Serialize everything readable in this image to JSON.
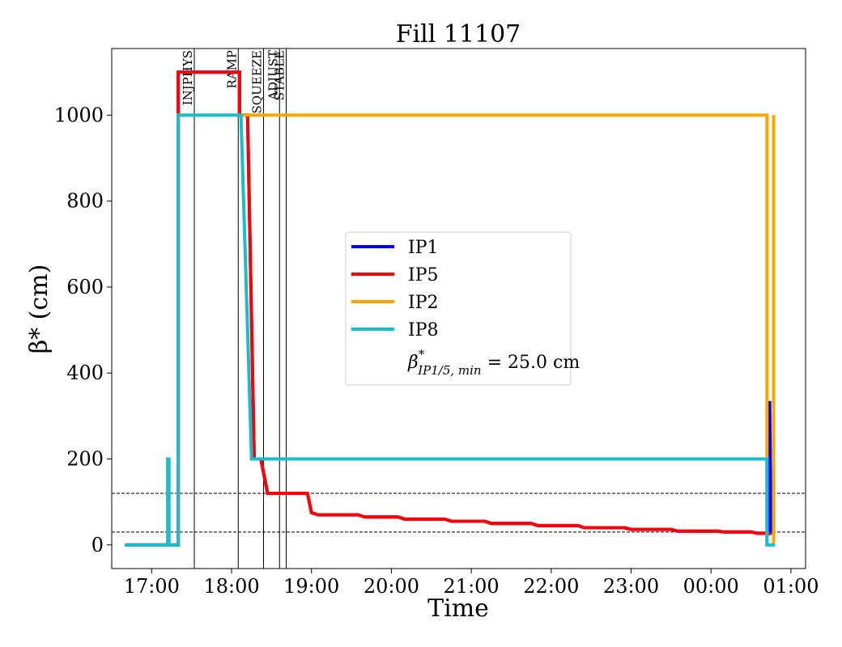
{
  "chart_data": {
    "type": "line",
    "title": "Fill 11107",
    "xlabel": "Time",
    "ylabel": "β* (cm)",
    "xlim": [
      "16:30",
      "01:11"
    ],
    "ylim": [
      -55,
      1155
    ],
    "x_ticks": [
      "17:00",
      "18:00",
      "19:00",
      "20:00",
      "21:00",
      "22:00",
      "23:00",
      "00:00",
      "01:00"
    ],
    "y_ticks": [
      0,
      200,
      400,
      600,
      800,
      1000
    ],
    "grid": false,
    "legend_position": "center",
    "series": [
      {
        "name": "IP1",
        "color": "#0000ff",
        "points": [
          [
            "16:40",
            0
          ],
          [
            "17:20",
            0
          ],
          [
            "17:20",
            1100
          ],
          [
            "18:06",
            1100
          ],
          [
            "18:06",
            1000
          ],
          [
            "18:12",
            1000
          ],
          [
            "18:17",
            200
          ],
          [
            "18:22",
            200
          ],
          [
            "18:27",
            120
          ],
          [
            "18:57",
            120
          ],
          [
            "19:00",
            75
          ],
          [
            "19:05",
            70
          ],
          [
            "19:35",
            70
          ],
          [
            "19:40",
            65
          ],
          [
            "20:05",
            65
          ],
          [
            "20:10",
            60
          ],
          [
            "20:40",
            60
          ],
          [
            "20:45",
            55
          ],
          [
            "21:10",
            55
          ],
          [
            "21:15",
            50
          ],
          [
            "21:45",
            50
          ],
          [
            "21:50",
            45
          ],
          [
            "22:20",
            45
          ],
          [
            "22:25",
            40
          ],
          [
            "22:55",
            40
          ],
          [
            "23:00",
            36
          ],
          [
            "23:30",
            36
          ],
          [
            "23:35",
            32
          ],
          [
            "24:05",
            32
          ],
          [
            "24:10",
            30
          ],
          [
            "24:30",
            30
          ],
          [
            "24:35",
            27
          ],
          [
            "24:44",
            27
          ],
          [
            "24:44",
            335
          ],
          [
            "24:45",
            25
          ]
        ]
      },
      {
        "name": "IP5",
        "color": "#ff0000",
        "points": [
          [
            "16:40",
            0
          ],
          [
            "17:20",
            0
          ],
          [
            "17:20",
            1100
          ],
          [
            "18:06",
            1100
          ],
          [
            "18:06",
            1000
          ],
          [
            "18:12",
            1000
          ],
          [
            "18:17",
            200
          ],
          [
            "18:22",
            200
          ],
          [
            "18:27",
            120
          ],
          [
            "18:57",
            120
          ],
          [
            "19:00",
            75
          ],
          [
            "19:05",
            70
          ],
          [
            "19:35",
            70
          ],
          [
            "19:40",
            65
          ],
          [
            "20:05",
            65
          ],
          [
            "20:10",
            60
          ],
          [
            "20:40",
            60
          ],
          [
            "20:45",
            55
          ],
          [
            "21:10",
            55
          ],
          [
            "21:15",
            50
          ],
          [
            "21:45",
            50
          ],
          [
            "21:50",
            45
          ],
          [
            "22:20",
            45
          ],
          [
            "22:25",
            40
          ],
          [
            "22:55",
            40
          ],
          [
            "23:00",
            36
          ],
          [
            "23:30",
            36
          ],
          [
            "23:35",
            32
          ],
          [
            "24:05",
            32
          ],
          [
            "24:10",
            30
          ],
          [
            "24:30",
            30
          ],
          [
            "24:35",
            27
          ],
          [
            "24:43",
            27
          ],
          [
            "24:45",
            25
          ]
        ]
      },
      {
        "name": "IP2",
        "color": "#ffa500",
        "points": [
          [
            "16:40",
            0
          ],
          [
            "17:20",
            0
          ],
          [
            "17:20",
            1000
          ],
          [
            "24:42",
            1000
          ],
          [
            "24:42",
            0
          ],
          [
            "24:47",
            0
          ],
          [
            "24:47",
            1000
          ],
          [
            "24:47",
            0
          ]
        ]
      },
      {
        "name": "IP8",
        "color": "#17becf",
        "points": [
          [
            "16:40",
            0
          ],
          [
            "17:12",
            0
          ],
          [
            "17:12",
            200
          ],
          [
            "17:13",
            200
          ],
          [
            "17:13",
            0
          ],
          [
            "17:20",
            0
          ],
          [
            "17:20",
            1000
          ],
          [
            "18:07",
            1000
          ],
          [
            "18:15",
            200
          ],
          [
            "24:42",
            200
          ],
          [
            "24:42",
            0
          ],
          [
            "24:48",
            0
          ]
        ]
      }
    ],
    "phase_markers": [
      {
        "label": "INJPHYS",
        "time": "17:32"
      },
      {
        "label": "RAMP",
        "time": "18:05"
      },
      {
        "label": "SQUEEZE",
        "time": "18:24"
      },
      {
        "label": "ADJUST",
        "time": "18:36"
      },
      {
        "label": "STABLE",
        "time": "18:41"
      }
    ],
    "reference_lines": [
      {
        "y": 120,
        "style": "dashed"
      },
      {
        "y": 30,
        "style": "dashed"
      }
    ],
    "legend_note": {
      "prefix": "β",
      "sup": "*",
      "sub": "IP1/5, min",
      "suffix": " = 25.0 cm"
    }
  }
}
